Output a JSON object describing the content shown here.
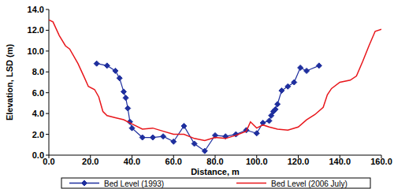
{
  "chart_data": {
    "type": "line",
    "x_label": "Distance, m",
    "y_label": "Elevation, LSD (m)",
    "xlim": [
      0,
      160
    ],
    "ylim": [
      0,
      14
    ],
    "xticks": [
      {
        "value": 0,
        "label": "0.0"
      },
      {
        "value": 20,
        "label": "20.0"
      },
      {
        "value": 40,
        "label": "40.0"
      },
      {
        "value": 60,
        "label": "60.0"
      },
      {
        "value": 80,
        "label": "80.0"
      },
      {
        "value": 100,
        "label": "100.0"
      },
      {
        "value": 120,
        "label": "120.0"
      },
      {
        "value": 140,
        "label": "140.0"
      },
      {
        "value": 160,
        "label": "160.0"
      }
    ],
    "yticks": [
      {
        "value": 0,
        "label": "0.0"
      },
      {
        "value": 2,
        "label": "2.0"
      },
      {
        "value": 4,
        "label": "4.0"
      },
      {
        "value": 6,
        "label": "6.0"
      },
      {
        "value": 8,
        "label": "8.0"
      },
      {
        "value": 10,
        "label": "10.0"
      },
      {
        "value": 12,
        "label": "12.0"
      },
      {
        "value": 14,
        "label": "14.0"
      }
    ],
    "grid": false,
    "legend": "bottom",
    "series": [
      {
        "name": "Bed Level (1993)",
        "color": "#1f2f9e",
        "marker": "diamond",
        "line_style": "solid",
        "x": [
          23,
          28,
          32,
          34,
          36,
          37,
          38,
          39,
          40,
          45,
          50,
          55,
          60,
          65,
          70,
          75,
          80,
          85,
          90,
          95,
          100,
          103,
          106,
          107,
          108,
          109,
          110,
          112,
          115,
          118,
          121,
          124,
          130
        ],
        "values": [
          8.8,
          8.6,
          8.1,
          7.4,
          6.1,
          5.5,
          4.5,
          3.2,
          2.6,
          1.7,
          1.7,
          1.8,
          1.3,
          2.8,
          1.1,
          0.4,
          1.9,
          1.8,
          2.0,
          2.4,
          2.1,
          3.1,
          3.3,
          3.8,
          4.2,
          4.4,
          4.9,
          6.2,
          6.6,
          7.0,
          8.4,
          8.1,
          8.6
        ]
      },
      {
        "name": "Bed Level (2006 July)",
        "color": "#e8161b",
        "marker": "none",
        "line_style": "solid",
        "x": [
          0,
          2,
          5,
          8,
          10,
          14,
          17,
          19,
          22,
          24,
          26,
          28,
          32,
          36,
          40,
          45,
          50,
          55,
          60,
          65,
          70,
          75,
          80,
          85,
          90,
          95,
          97,
          100,
          103,
          106,
          110,
          115,
          120,
          124,
          128,
          132,
          134,
          136,
          140,
          145,
          148,
          151,
          154,
          157,
          160
        ],
        "values": [
          13.0,
          12.8,
          11.5,
          10.5,
          10.2,
          8.8,
          7.5,
          6.6,
          6.3,
          5.6,
          4.2,
          3.8,
          3.6,
          3.4,
          3.0,
          2.5,
          2.6,
          2.3,
          2.0,
          2.0,
          1.6,
          1.4,
          1.7,
          1.6,
          1.9,
          2.3,
          3.2,
          2.6,
          2.9,
          2.7,
          2.5,
          2.4,
          2.7,
          3.4,
          3.9,
          4.6,
          5.8,
          6.4,
          7.0,
          7.2,
          7.6,
          9.0,
          10.5,
          11.9,
          12.1
        ]
      }
    ]
  }
}
